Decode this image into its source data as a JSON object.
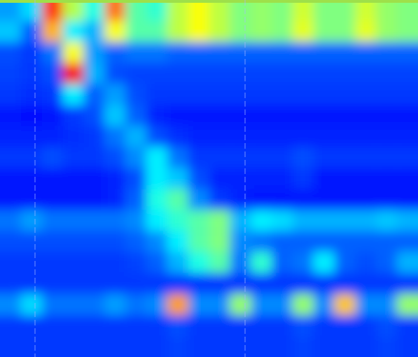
{
  "chart_data": {
    "type": "heatmap",
    "tick_labels": false,
    "zlim": [
      0,
      1
    ],
    "cells": [
      [
        0.28,
        0.34,
        0.82,
        0.55,
        0.4,
        0.76,
        0.46,
        0.42,
        0.56,
        0.62,
        0.56,
        0.5,
        0.52,
        0.5,
        0.58,
        0.5,
        0.5,
        0.58,
        0.52,
        0.5
      ],
      [
        0.32,
        0.22,
        0.7,
        0.36,
        0.3,
        0.62,
        0.46,
        0.46,
        0.56,
        0.62,
        0.56,
        0.5,
        0.52,
        0.5,
        0.6,
        0.5,
        0.5,
        0.6,
        0.52,
        0.5
      ],
      [
        0.2,
        0.18,
        0.24,
        0.62,
        0.28,
        0.22,
        0.24,
        0.24,
        0.22,
        0.22,
        0.22,
        0.22,
        0.22,
        0.22,
        0.22,
        0.22,
        0.22,
        0.22,
        0.22,
        0.22
      ],
      [
        0.19,
        0.18,
        0.2,
        0.88,
        0.3,
        0.2,
        0.19,
        0.19,
        0.19,
        0.19,
        0.19,
        0.19,
        0.19,
        0.19,
        0.19,
        0.19,
        0.19,
        0.19,
        0.19,
        0.19
      ],
      [
        0.18,
        0.17,
        0.18,
        0.36,
        0.22,
        0.28,
        0.2,
        0.18,
        0.18,
        0.18,
        0.18,
        0.18,
        0.18,
        0.18,
        0.18,
        0.18,
        0.18,
        0.18,
        0.18,
        0.18
      ],
      [
        0.15,
        0.14,
        0.15,
        0.18,
        0.2,
        0.32,
        0.22,
        0.16,
        0.15,
        0.15,
        0.15,
        0.15,
        0.15,
        0.15,
        0.15,
        0.15,
        0.15,
        0.15,
        0.15,
        0.15
      ],
      [
        0.16,
        0.16,
        0.16,
        0.17,
        0.18,
        0.24,
        0.3,
        0.2,
        0.17,
        0.16,
        0.16,
        0.16,
        0.16,
        0.16,
        0.16,
        0.16,
        0.16,
        0.16,
        0.16,
        0.16
      ],
      [
        0.18,
        0.18,
        0.2,
        0.18,
        0.18,
        0.2,
        0.26,
        0.36,
        0.24,
        0.18,
        0.18,
        0.18,
        0.18,
        0.18,
        0.2,
        0.18,
        0.18,
        0.18,
        0.18,
        0.18
      ],
      [
        0.15,
        0.15,
        0.15,
        0.15,
        0.15,
        0.16,
        0.2,
        0.36,
        0.32,
        0.2,
        0.16,
        0.16,
        0.16,
        0.16,
        0.18,
        0.15,
        0.15,
        0.15,
        0.15,
        0.15
      ],
      [
        0.15,
        0.15,
        0.15,
        0.15,
        0.15,
        0.16,
        0.22,
        0.4,
        0.46,
        0.26,
        0.18,
        0.16,
        0.15,
        0.15,
        0.15,
        0.15,
        0.15,
        0.15,
        0.15,
        0.15
      ],
      [
        0.24,
        0.28,
        0.24,
        0.24,
        0.24,
        0.24,
        0.26,
        0.36,
        0.42,
        0.46,
        0.5,
        0.3,
        0.36,
        0.34,
        0.3,
        0.3,
        0.3,
        0.3,
        0.32,
        0.3
      ],
      [
        0.2,
        0.2,
        0.2,
        0.2,
        0.2,
        0.2,
        0.22,
        0.26,
        0.36,
        0.46,
        0.5,
        0.26,
        0.24,
        0.22,
        0.22,
        0.22,
        0.22,
        0.22,
        0.22,
        0.22
      ],
      [
        0.18,
        0.18,
        0.18,
        0.18,
        0.18,
        0.18,
        0.19,
        0.22,
        0.3,
        0.4,
        0.46,
        0.24,
        0.42,
        0.22,
        0.24,
        0.36,
        0.22,
        0.2,
        0.22,
        0.3
      ],
      [
        0.18,
        0.18,
        0.18,
        0.18,
        0.18,
        0.18,
        0.18,
        0.18,
        0.18,
        0.18,
        0.18,
        0.18,
        0.18,
        0.18,
        0.18,
        0.18,
        0.18,
        0.18,
        0.18,
        0.18
      ],
      [
        0.26,
        0.34,
        0.24,
        0.24,
        0.24,
        0.28,
        0.24,
        0.26,
        0.72,
        0.26,
        0.26,
        0.52,
        0.26,
        0.26,
        0.52,
        0.26,
        0.68,
        0.26,
        0.26,
        0.52
      ],
      [
        0.18,
        0.18,
        0.18,
        0.18,
        0.18,
        0.18,
        0.18,
        0.18,
        0.2,
        0.18,
        0.18,
        0.18,
        0.18,
        0.18,
        0.2,
        0.18,
        0.18,
        0.18,
        0.2,
        0.18
      ],
      [
        0.18,
        0.18,
        0.18,
        0.18,
        0.18,
        0.18,
        0.18,
        0.18,
        0.19,
        0.18,
        0.18,
        0.18,
        0.18,
        0.18,
        0.19,
        0.18,
        0.18,
        0.18,
        0.19,
        0.18
      ]
    ]
  }
}
